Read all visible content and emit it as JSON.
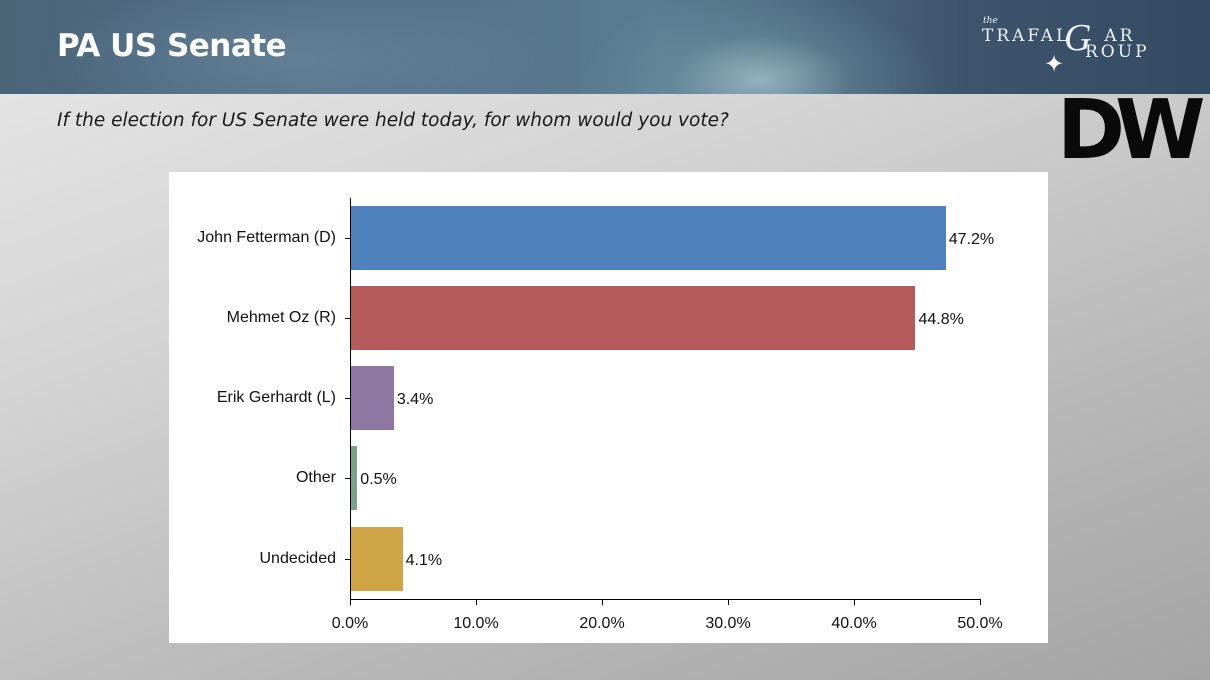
{
  "header": {
    "title": "PA US Senate",
    "brand": {
      "the": "the",
      "line1": "TRAFAL",
      "g": "G",
      "line2": "AR",
      "line3": "ROUP",
      "star_icon": "✦"
    }
  },
  "subtitle": "If the election for US Senate were held today, for whom would you vote?",
  "partner_logo": "DW",
  "chart_data": {
    "type": "bar",
    "orientation": "horizontal",
    "title": "PA US Senate",
    "subtitle": "If the election for US Senate were held today, for whom would you vote?",
    "categories": [
      "John Fetterman (D)",
      "Mehmet Oz (R)",
      "Erik Gerhardt (L)",
      "Other",
      "Undecided"
    ],
    "values": [
      47.2,
      44.8,
      3.4,
      0.5,
      4.1
    ],
    "value_labels": [
      "47.2%",
      "44.8%",
      "3.4%",
      "0.5%",
      "4.1%"
    ],
    "colors": [
      "#4f81bd",
      "#b55a5a",
      "#8e77a0",
      "#7aa38a",
      "#cfa545"
    ],
    "xlabel": "",
    "ylabel": "",
    "xlim": [
      0,
      50
    ],
    "x_ticks": [
      "0.0%",
      "10.0%",
      "20.0%",
      "30.0%",
      "40.0%",
      "50.0%"
    ],
    "grid": false,
    "legend": "none"
  }
}
